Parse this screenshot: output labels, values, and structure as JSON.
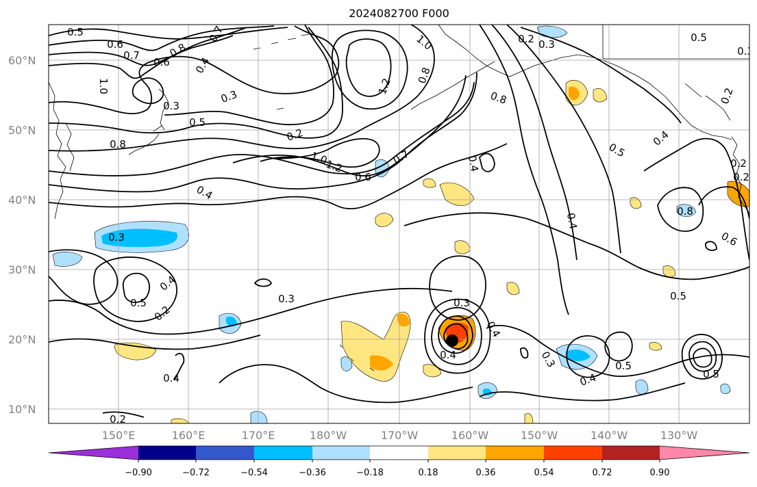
{
  "title": "2024082700 F000",
  "lat_labels": [
    "60°N",
    "50°N",
    "40°N",
    "30°N",
    "20°N",
    "10°N"
  ],
  "lon_labels": [
    "150°E",
    "160°E",
    "170°E",
    "180°W",
    "170°W",
    "160°W",
    "150°W",
    "140°W",
    "130°W"
  ],
  "colorbar": {
    "tick_labels": [
      "−0.90",
      "−0.72",
      "−0.54",
      "−0.36",
      "−0.18",
      "0.18",
      "0.36",
      "0.54",
      "0.72",
      "0.90"
    ],
    "colors": [
      "#9b30d9",
      "#00008b",
      "#3358cc",
      "#00bfff",
      "#b0e0ff",
      "#ffffff",
      "#ffe680",
      "#ffa500",
      "#ff4000",
      "#b22222",
      "#ff88aa"
    ]
  },
  "contour_labels": [
    "0.5",
    "0.6",
    "0.7",
    "0.8",
    "0.6",
    "0.7",
    "0.4",
    "1.0",
    "0.3",
    "0.5",
    "0.3",
    "0.8",
    "0.2",
    "1.0",
    "1.2",
    "0.6",
    "0.7",
    "1.0",
    "0.8",
    "1.2",
    "0.2",
    "0.3",
    "0.8",
    "0.4",
    "0.4",
    "0.3",
    "0.2",
    "0.4",
    "0.5",
    "0.4",
    "0.8",
    "0.6",
    "0.2",
    "0.3",
    "0.5",
    "0.4",
    "0.2",
    "0.3",
    "0.5",
    "0.2",
    "0.2",
    "0.3",
    "0.4",
    "0.3",
    "0.4",
    "0.5",
    "0.5",
    "0.5",
    "0.4",
    "0.4"
  ]
}
